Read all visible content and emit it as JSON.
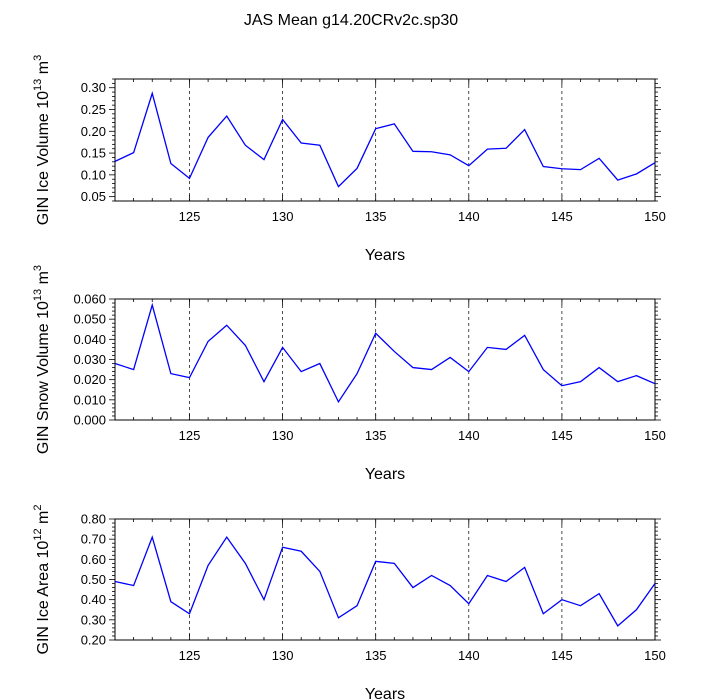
{
  "figure_title": "JAS Mean g14.20CRv2c.sp30",
  "chart_data": [
    {
      "type": "line",
      "ylabel": "GIN Ice Volume 10",
      "ylabel_sup1": "13",
      "ylabel_unit": " m",
      "ylabel_sup2": "3",
      "xlabel": "Years",
      "xlim": [
        121,
        150
      ],
      "ylim": [
        0.04,
        0.32
      ],
      "xticks": [
        125,
        130,
        135,
        140,
        145,
        150
      ],
      "xtick_labels": [
        "125",
        "130",
        "135",
        "140",
        "145",
        "150"
      ],
      "yticks": [
        0.05,
        0.1,
        0.15,
        0.2,
        0.25,
        0.3
      ],
      "ytick_labels": [
        "0.05",
        "0.10",
        "0.15",
        "0.20",
        "0.25",
        "0.30"
      ],
      "vgrid_dashed": [
        125,
        130,
        135,
        140,
        145
      ],
      "line_color": "#0000ff",
      "x": [
        121,
        122,
        123,
        124,
        125,
        126,
        127,
        128,
        129,
        130,
        131,
        132,
        133,
        134,
        135,
        136,
        137,
        138,
        139,
        140,
        141,
        142,
        143,
        144,
        145,
        146,
        147,
        148,
        149,
        150
      ],
      "y": [
        0.131,
        0.151,
        0.287,
        0.126,
        0.092,
        0.186,
        0.235,
        0.168,
        0.135,
        0.227,
        0.173,
        0.168,
        0.073,
        0.115,
        0.206,
        0.217,
        0.154,
        0.153,
        0.146,
        0.121,
        0.159,
        0.161,
        0.204,
        0.119,
        0.114,
        0.112,
        0.138,
        0.088,
        0.102,
        0.128
      ]
    },
    {
      "type": "line",
      "ylabel": "GIN Snow Volume 10",
      "ylabel_sup1": "13",
      "ylabel_unit": " m",
      "ylabel_sup2": "3",
      "xlabel": "Years",
      "xlim": [
        121,
        150
      ],
      "ylim": [
        0.0,
        0.06
      ],
      "xticks": [
        125,
        130,
        135,
        140,
        145,
        150
      ],
      "xtick_labels": [
        "125",
        "130",
        "135",
        "140",
        "145",
        "150"
      ],
      "yticks": [
        0.0,
        0.01,
        0.02,
        0.03,
        0.04,
        0.05,
        0.06
      ],
      "ytick_labels": [
        "0.000",
        "0.010",
        "0.020",
        "0.030",
        "0.040",
        "0.050",
        "0.060"
      ],
      "vgrid_dashed": [
        125,
        130,
        135,
        140,
        145
      ],
      "line_color": "#0000ff",
      "x": [
        121,
        122,
        123,
        124,
        125,
        126,
        127,
        128,
        129,
        130,
        131,
        132,
        133,
        134,
        135,
        136,
        137,
        138,
        139,
        140,
        141,
        142,
        143,
        144,
        145,
        146,
        147,
        148,
        149,
        150
      ],
      "y": [
        0.028,
        0.025,
        0.057,
        0.023,
        0.021,
        0.039,
        0.047,
        0.037,
        0.019,
        0.036,
        0.024,
        0.028,
        0.009,
        0.023,
        0.043,
        0.034,
        0.026,
        0.025,
        0.031,
        0.024,
        0.036,
        0.035,
        0.042,
        0.025,
        0.017,
        0.019,
        0.026,
        0.019,
        0.022,
        0.018
      ]
    },
    {
      "type": "line",
      "ylabel": "GIN Ice Area 10",
      "ylabel_sup1": "12",
      "ylabel_unit": " m",
      "ylabel_sup2": "2",
      "xlabel": "Years",
      "xlim": [
        121,
        150
      ],
      "ylim": [
        0.2,
        0.8
      ],
      "xticks": [
        125,
        130,
        135,
        140,
        145,
        150
      ],
      "xtick_labels": [
        "125",
        "130",
        "135",
        "140",
        "145",
        "150"
      ],
      "yticks": [
        0.2,
        0.3,
        0.4,
        0.5,
        0.6,
        0.7,
        0.8
      ],
      "ytick_labels": [
        "0.20",
        "0.30",
        "0.40",
        "0.50",
        "0.60",
        "0.70",
        "0.80"
      ],
      "vgrid_dashed": [
        125,
        130,
        135,
        140,
        145
      ],
      "line_color": "#0000ff",
      "x": [
        121,
        122,
        123,
        124,
        125,
        126,
        127,
        128,
        129,
        130,
        131,
        132,
        133,
        134,
        135,
        136,
        137,
        138,
        139,
        140,
        141,
        142,
        143,
        144,
        145,
        146,
        147,
        148,
        149,
        150
      ],
      "y": [
        0.49,
        0.47,
        0.71,
        0.39,
        0.33,
        0.57,
        0.71,
        0.58,
        0.4,
        0.66,
        0.64,
        0.54,
        0.31,
        0.37,
        0.59,
        0.58,
        0.46,
        0.52,
        0.47,
        0.38,
        0.52,
        0.49,
        0.56,
        0.33,
        0.4,
        0.37,
        0.43,
        0.27,
        0.35,
        0.48
      ]
    }
  ]
}
